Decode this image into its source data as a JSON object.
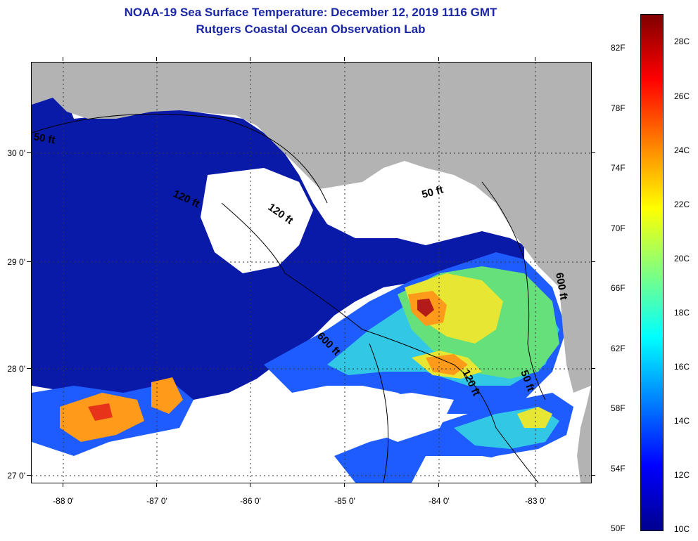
{
  "title_line1": "NOAA-19 Sea Surface Temperature:  December 12, 2019 1116 GMT",
  "title_line2": "Rutgers Coastal Ocean Observation Lab",
  "latitude_labels": [
    "30 0'",
    "29 0'",
    "28 0'",
    "27 0'"
  ],
  "longitude_labels": [
    "-88 0'",
    "-87 0'",
    "-86 0'",
    "-85 0'",
    "-84 0'",
    "-83 0'"
  ],
  "colorbar": {
    "fahrenheit_labels": [
      "82F",
      "78F",
      "74F",
      "70F",
      "66F",
      "62F",
      "58F",
      "54F",
      "50F"
    ],
    "celsius_labels": [
      "28C",
      "26C",
      "24C",
      "22C",
      "20C",
      "18C",
      "16C",
      "14C",
      "12C",
      "10C"
    ],
    "colors": [
      "#00008f",
      "#0000ff",
      "#0080ff",
      "#00ffff",
      "#80ff80",
      "#ffff00",
      "#ff8000",
      "#ff0000",
      "#800000"
    ]
  },
  "contour_labels": [
    "50 ft",
    "120 ft",
    "120 ft",
    "50 ft",
    "600 ft",
    "120 ft",
    "50 ft",
    "600 ft"
  ],
  "colors": {
    "land": "#b3b3b3",
    "cloud": "#ffffff",
    "ocean_cold": "#0a1aa8",
    "ocean_mid": "#1f5cff",
    "ocean_teal": "#33c7e6",
    "warm_yellow": "#e6e633",
    "warm_orange": "#ff9a1a",
    "hot_red": "#e63319"
  }
}
